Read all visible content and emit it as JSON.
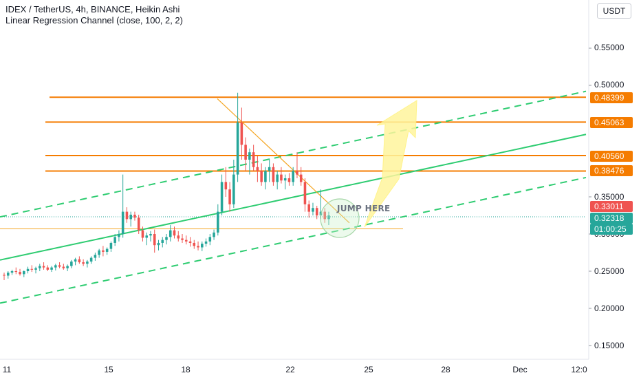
{
  "legend": {
    "line1": "IDEX / TetherUS, 4h, BINANCE, Heikin Ashi",
    "line2": "Linear Regression Channel (close, 100, 2, 2)"
  },
  "currency_button": "USDT",
  "y_tick_labels": [
    "0.55000",
    "0.50000",
    "0.35000",
    "0.30000",
    "0.25000",
    "0.20000",
    "0.15000"
  ],
  "x_tick_labels": [
    "11",
    "15",
    "18",
    "22",
    "25",
    "28",
    "Dec",
    "12:0"
  ],
  "level_tags": [
    {
      "text": "0.48399",
      "color": "#f57c00"
    },
    {
      "text": "0.45063",
      "color": "#f57c00"
    },
    {
      "text": "0.40560",
      "color": "#f57c00"
    },
    {
      "text": "0.38476",
      "color": "#f57c00"
    },
    {
      "text": "0.33011",
      "color": "#ef5350"
    },
    {
      "text": "0.32318",
      "color": "#26a69a"
    },
    {
      "text": "01:00:25",
      "color": "#26a69a"
    }
  ],
  "annotation_text": "JUMP HERE",
  "colors": {
    "up": "#26a69a",
    "down": "#ef5350",
    "level": "#f57c00",
    "regression": "#2ecc71",
    "trendline": "#f5a623",
    "arrow": "#fff59d"
  },
  "chart_data": {
    "type": "candlestick",
    "title": "IDEX / TetherUS, 4h, BINANCE, Heikin Ashi",
    "indicator": "Linear Regression Channel (close, 100, 2, 2)",
    "y_axis_ticks": [
      0.55,
      0.5,
      0.35,
      0.3,
      0.25,
      0.2,
      0.15
    ],
    "x_axis_ticks": [
      "11",
      "15",
      "18",
      "22",
      "25",
      "28",
      "Dec",
      "12:0"
    ],
    "horizontal_levels": [
      0.48399,
      0.45063,
      0.4056,
      0.38476
    ],
    "support_level": 0.307,
    "last_close": 0.32318,
    "previous_close": 0.33011,
    "countdown": "01:00:25",
    "candles": [
      [
        0.245,
        0.248,
        0.238,
        0.244
      ],
      [
        0.244,
        0.25,
        0.24,
        0.248
      ],
      [
        0.248,
        0.252,
        0.245,
        0.25
      ],
      [
        0.25,
        0.255,
        0.246,
        0.249
      ],
      [
        0.249,
        0.253,
        0.244,
        0.246
      ],
      [
        0.246,
        0.251,
        0.242,
        0.25
      ],
      [
        0.25,
        0.256,
        0.247,
        0.253
      ],
      [
        0.253,
        0.258,
        0.249,
        0.252
      ],
      [
        0.252,
        0.256,
        0.247,
        0.254
      ],
      [
        0.254,
        0.26,
        0.25,
        0.257
      ],
      [
        0.257,
        0.262,
        0.252,
        0.255
      ],
      [
        0.255,
        0.258,
        0.25,
        0.252
      ],
      [
        0.252,
        0.257,
        0.249,
        0.255
      ],
      [
        0.255,
        0.26,
        0.251,
        0.258
      ],
      [
        0.258,
        0.262,
        0.254,
        0.256
      ],
      [
        0.256,
        0.26,
        0.252,
        0.254
      ],
      [
        0.254,
        0.259,
        0.25,
        0.257
      ],
      [
        0.257,
        0.265,
        0.254,
        0.263
      ],
      [
        0.263,
        0.268,
        0.258,
        0.266
      ],
      [
        0.266,
        0.27,
        0.26,
        0.262
      ],
      [
        0.262,
        0.266,
        0.257,
        0.26
      ],
      [
        0.26,
        0.265,
        0.255,
        0.263
      ],
      [
        0.263,
        0.27,
        0.26,
        0.268
      ],
      [
        0.268,
        0.275,
        0.264,
        0.272
      ],
      [
        0.272,
        0.28,
        0.268,
        0.278
      ],
      [
        0.278,
        0.284,
        0.27,
        0.276
      ],
      [
        0.276,
        0.282,
        0.272,
        0.28
      ],
      [
        0.28,
        0.29,
        0.276,
        0.288
      ],
      [
        0.288,
        0.3,
        0.284,
        0.296
      ],
      [
        0.296,
        0.305,
        0.29,
        0.3
      ],
      [
        0.3,
        0.38,
        0.295,
        0.33
      ],
      [
        0.33,
        0.336,
        0.315,
        0.32
      ],
      [
        0.32,
        0.33,
        0.31,
        0.326
      ],
      [
        0.326,
        0.33,
        0.318,
        0.322
      ],
      [
        0.322,
        0.326,
        0.3,
        0.305
      ],
      [
        0.305,
        0.31,
        0.29,
        0.295
      ],
      [
        0.295,
        0.302,
        0.285,
        0.298
      ],
      [
        0.298,
        0.304,
        0.29,
        0.3
      ],
      [
        0.3,
        0.306,
        0.275,
        0.285
      ],
      [
        0.285,
        0.292,
        0.278,
        0.288
      ],
      [
        0.288,
        0.296,
        0.282,
        0.292
      ],
      [
        0.292,
        0.3,
        0.286,
        0.296
      ],
      [
        0.296,
        0.312,
        0.29,
        0.305
      ],
      [
        0.305,
        0.31,
        0.294,
        0.298
      ],
      [
        0.298,
        0.304,
        0.29,
        0.294
      ],
      [
        0.294,
        0.3,
        0.288,
        0.292
      ],
      [
        0.292,
        0.298,
        0.286,
        0.29
      ],
      [
        0.29,
        0.296,
        0.283,
        0.288
      ],
      [
        0.288,
        0.292,
        0.28,
        0.284
      ],
      [
        0.284,
        0.29,
        0.278,
        0.282
      ],
      [
        0.282,
        0.29,
        0.277,
        0.287
      ],
      [
        0.287,
        0.294,
        0.283,
        0.29
      ],
      [
        0.29,
        0.3,
        0.285,
        0.296
      ],
      [
        0.296,
        0.306,
        0.292,
        0.302
      ],
      [
        0.302,
        0.34,
        0.298,
        0.33
      ],
      [
        0.33,
        0.38,
        0.325,
        0.37
      ],
      [
        0.37,
        0.39,
        0.35,
        0.36
      ],
      [
        0.36,
        0.37,
        0.33,
        0.34
      ],
      [
        0.34,
        0.4,
        0.335,
        0.38
      ],
      [
        0.38,
        0.49,
        0.37,
        0.45
      ],
      [
        0.45,
        0.47,
        0.4,
        0.42
      ],
      [
        0.42,
        0.43,
        0.385,
        0.4
      ],
      [
        0.4,
        0.415,
        0.38,
        0.41
      ],
      [
        0.41,
        0.42,
        0.385,
        0.39
      ],
      [
        0.39,
        0.405,
        0.37,
        0.385
      ],
      [
        0.385,
        0.395,
        0.365,
        0.37
      ],
      [
        0.37,
        0.39,
        0.36,
        0.385
      ],
      [
        0.385,
        0.4,
        0.37,
        0.39
      ],
      [
        0.39,
        0.395,
        0.365,
        0.37
      ],
      [
        0.37,
        0.385,
        0.36,
        0.38
      ],
      [
        0.38,
        0.39,
        0.368,
        0.372
      ],
      [
        0.372,
        0.38,
        0.36,
        0.375
      ],
      [
        0.375,
        0.382,
        0.365,
        0.37
      ],
      [
        0.37,
        0.39,
        0.365,
        0.385
      ],
      [
        0.385,
        0.41,
        0.375,
        0.38
      ],
      [
        0.38,
        0.39,
        0.365,
        0.37
      ],
      [
        0.37,
        0.375,
        0.33,
        0.34
      ],
      [
        0.34,
        0.345,
        0.322,
        0.33
      ],
      [
        0.33,
        0.342,
        0.325,
        0.335
      ],
      [
        0.335,
        0.338,
        0.32,
        0.325
      ],
      [
        0.325,
        0.36,
        0.32,
        0.33
      ],
      [
        0.33,
        0.335,
        0.315,
        0.32
      ],
      [
        0.32,
        0.33,
        0.312,
        0.325
      ]
    ]
  }
}
